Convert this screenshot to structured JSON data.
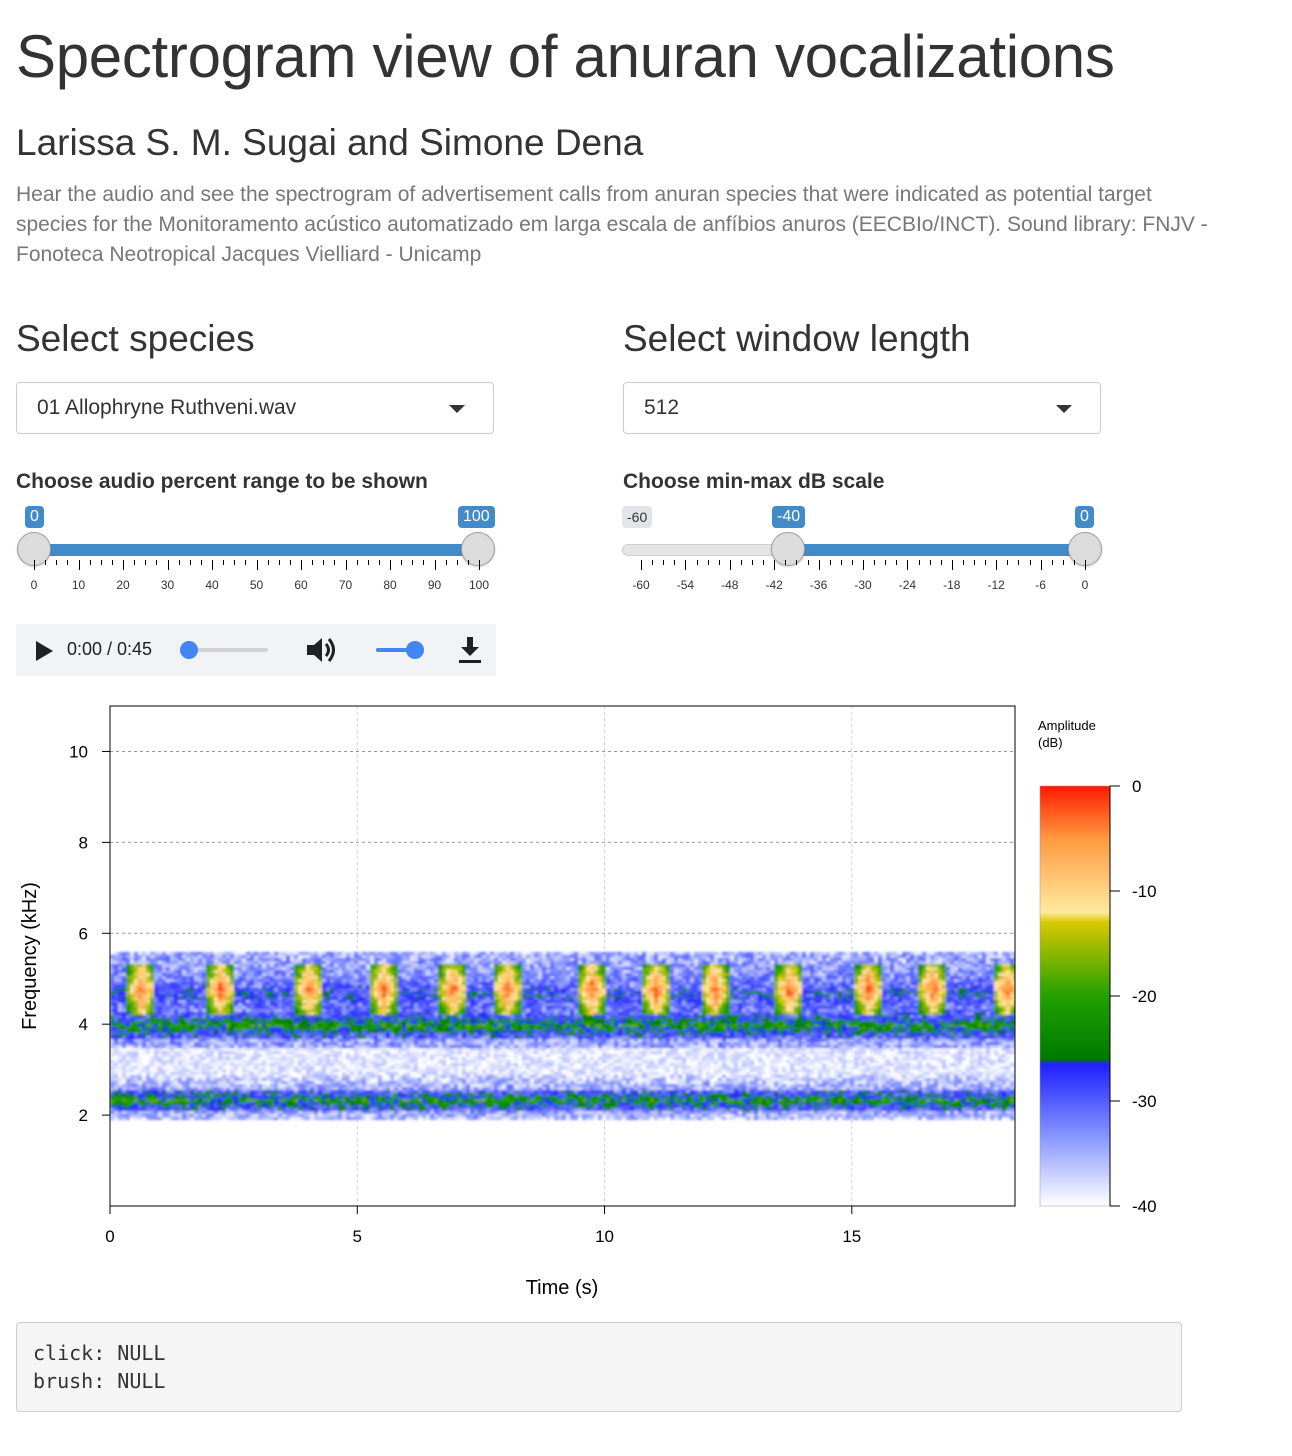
{
  "page": {
    "title": "Spectrogram view of anuran vocalizations",
    "authors": "Larissa S. M. Sugai and Simone Dena",
    "description": "Hear the audio and see the spectrogram of advertisement calls from anuran species that were indicated as potential target species for the Monitoramento acústico automatizado em larga escala de anfíbios anuros (EECBIo/INCT). Sound library: FNJV - Fonoteca Neotropical Jacques Vielliard - Unicamp"
  },
  "species": {
    "heading": "Select species",
    "selected": "01 Allophryne Ruthveni.wav"
  },
  "window": {
    "heading": "Select window length",
    "selected": "512"
  },
  "range_slider": {
    "label": "Choose audio percent range to be shown",
    "from": 0,
    "to": 100,
    "from_label": "0",
    "to_label": "100",
    "ticks": [
      "0",
      "10",
      "20",
      "30",
      "40",
      "50",
      "60",
      "70",
      "80",
      "90",
      "100"
    ]
  },
  "db_slider": {
    "label": "Choose min-max dB scale",
    "min_label": "-60",
    "from_label": "-40",
    "to_label": "0",
    "ticks": [
      "-60",
      "-54",
      "-48",
      "-42",
      "-36",
      "-30",
      "-24",
      "-18",
      "-12",
      "-6",
      "0"
    ]
  },
  "player": {
    "time": "0:00 / 0:45",
    "progress": 0.0,
    "volume": 1.0,
    "icons": [
      "play-icon",
      "volume-icon",
      "download-icon"
    ]
  },
  "chart_data": {
    "type": "heatmap",
    "xlabel": "Time (s)",
    "ylabel": "Frequency (kHz)",
    "xlim": [
      0,
      18.3
    ],
    "ylim": [
      0,
      11
    ],
    "x_ticks": [
      "0",
      "5",
      "10",
      "15"
    ],
    "y_ticks": [
      "2",
      "4",
      "6",
      "8",
      "10"
    ],
    "grid": true,
    "bands_khz": [
      {
        "center": 2.35,
        "width": 0.25,
        "level_db": -22
      },
      {
        "center": 4.0,
        "width": 0.3,
        "level_db": -22
      },
      {
        "center": 4.7,
        "width": 0.5,
        "level_db": -28
      }
    ],
    "call_times_s": [
      0.6,
      2.2,
      4.0,
      5.5,
      6.9,
      8.0,
      9.7,
      11.0,
      12.2,
      13.7,
      15.3,
      16.6,
      18.1
    ],
    "call_freq_khz": 4.8,
    "colorbar": {
      "title": "Amplitude\n(dB)",
      "ticks": [
        "0",
        "-10",
        "-20",
        "-30",
        "-40"
      ],
      "range": [
        -40,
        0
      ],
      "stops": [
        {
          "db": 0,
          "color": "#ff1a00"
        },
        {
          "db": -5,
          "color": "#ff9a40"
        },
        {
          "db": -12,
          "color": "#ffe9a0"
        },
        {
          "db": -13,
          "color": "#d8c800"
        },
        {
          "db": -20,
          "color": "#22a000"
        },
        {
          "db": -26,
          "color": "#007a00"
        },
        {
          "db": -26.5,
          "color": "#2020ff"
        },
        {
          "db": -33,
          "color": "#8090ff"
        },
        {
          "db": -40,
          "color": "#ffffff"
        }
      ]
    }
  },
  "debug": {
    "click": "click: NULL",
    "brush": "brush: NULL"
  }
}
